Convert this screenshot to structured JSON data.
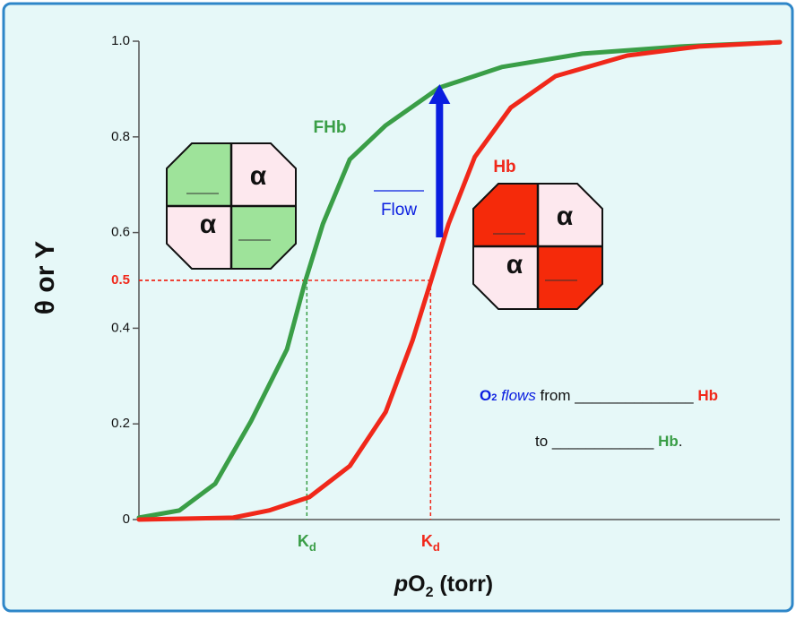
{
  "chart_data": {
    "type": "line",
    "ylabel": "θ or Y",
    "xlabel": {
      "italic": "p",
      "main": "O",
      "sub": "2",
      "rest": " (torr)"
    },
    "xlim": [
      0,
      100
    ],
    "ylim": [
      0,
      1
    ],
    "yticks": [
      0,
      0.2,
      0.4,
      0.6,
      0.8,
      {
        "value": 1,
        "label": "1.0"
      }
    ],
    "highlight_tick": {
      "value": 0.5,
      "label": "0.5",
      "color": "#f0281a"
    },
    "series": [
      {
        "name": "FHb",
        "color": "#3a9e47",
        "x": [
          0,
          6.3,
          11.9,
          17.5,
          23.1,
          25.9,
          28.7,
          32.9,
          38.5,
          46.9,
          56.6,
          69.2,
          84.6,
          100
        ],
        "values": [
          0.004,
          0.019,
          0.075,
          0.206,
          0.356,
          0.496,
          0.618,
          0.753,
          0.824,
          0.903,
          0.946,
          0.974,
          0.989,
          0.998
        ],
        "kd": {
          "x": 26.2,
          "y": 0.5,
          "label": "K",
          "sub": "d"
        },
        "subunit_colors": [
          "#9ee39a",
          "#fde8ee"
        ]
      },
      {
        "name": "Hb",
        "color": "#f0281a",
        "x": [
          0,
          14.7,
          20.3,
          26.6,
          32.9,
          38.5,
          42.7,
          45.5,
          48.3,
          52.4,
          58.0,
          65.0,
          76.2,
          87.4,
          100
        ],
        "values": [
          0,
          0.004,
          0.019,
          0.047,
          0.112,
          0.225,
          0.375,
          0.496,
          0.618,
          0.758,
          0.861,
          0.927,
          0.97,
          0.989,
          0.998
        ],
        "kd": {
          "x": 45.5,
          "y": 0.5,
          "label": "K",
          "sub": "d"
        },
        "subunit_colors": [
          "#f52a0a",
          "#fde8ee"
        ]
      }
    ],
    "subunit_label": "α",
    "arrow": {
      "x": 46.9,
      "from": 0.59,
      "to": 0.91,
      "label": "Flow",
      "color": "#0a1ee0"
    },
    "question": {
      "line1": [
        {
          "text": "O",
          "style": "o2"
        },
        {
          "text": "2",
          "style": "o2sub"
        },
        {
          "text": " flows",
          "style": "flows"
        },
        {
          "text": " from ______________ ",
          "style": "plain"
        },
        {
          "text": "Hb",
          "style": "red"
        }
      ],
      "line2": [
        {
          "text": "to ____________ ",
          "style": "plain"
        },
        {
          "text": "Hb",
          "style": "green"
        },
        {
          "text": ".",
          "style": "plain"
        }
      ]
    }
  }
}
